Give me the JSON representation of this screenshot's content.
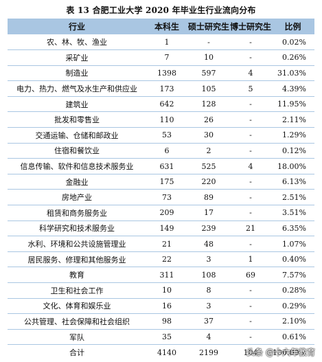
{
  "caption": "表 13    合肥工业大学 2020 年毕业生行业流向分布",
  "headers": {
    "industry": "行业",
    "bachelor": "本科生",
    "master": "硕士研究生",
    "phd": "博士研究生",
    "ratio": "比例"
  },
  "rows": [
    {
      "industry": "农、林、牧、渔业",
      "bachelor": "1",
      "master": "-",
      "phd": "-",
      "ratio": "0.02%"
    },
    {
      "industry": "采矿业",
      "bachelor": "7",
      "master": "10",
      "phd": "-",
      "ratio": "0.26%"
    },
    {
      "industry": "制造业",
      "bachelor": "1398",
      "master": "597",
      "phd": "4",
      "ratio": "31.03%"
    },
    {
      "industry": "电力、热力、燃气及水生产和供应业",
      "bachelor": "173",
      "master": "105",
      "phd": "5",
      "ratio": "4.39%"
    },
    {
      "industry": "建筑业",
      "bachelor": "642",
      "master": "128",
      "phd": "-",
      "ratio": "11.95%"
    },
    {
      "industry": "批发和零售业",
      "bachelor": "110",
      "master": "26",
      "phd": "-",
      "ratio": "2.11%"
    },
    {
      "industry": "交通运输、仓储和邮政业",
      "bachelor": "53",
      "master": "30",
      "phd": "-",
      "ratio": "1.29%"
    },
    {
      "industry": "住宿和餐饮业",
      "bachelor": "6",
      "master": "2",
      "phd": "-",
      "ratio": "0.12%"
    },
    {
      "industry": "信息传输、软件和信息技术服务业",
      "bachelor": "631",
      "master": "525",
      "phd": "4",
      "ratio": "18.00%"
    },
    {
      "industry": "金融业",
      "bachelor": "175",
      "master": "220",
      "phd": "-",
      "ratio": "6.13%"
    },
    {
      "industry": "房地产业",
      "bachelor": "73",
      "master": "89",
      "phd": "-",
      "ratio": "2.51%"
    },
    {
      "industry": "租赁和商务服务业",
      "bachelor": "209",
      "master": "17",
      "phd": "-",
      "ratio": "3.51%"
    },
    {
      "industry": "科学研究和技术服务业",
      "bachelor": "149",
      "master": "239",
      "phd": "21",
      "ratio": "6.35%"
    },
    {
      "industry": "水利、环境和公共设施管理业",
      "bachelor": "21",
      "master": "48",
      "phd": "-",
      "ratio": "1.07%"
    },
    {
      "industry": "居民服务、修理和其他服务业",
      "bachelor": "22",
      "master": "3",
      "phd": "1",
      "ratio": "0.40%"
    },
    {
      "industry": "教育",
      "bachelor": "311",
      "master": "108",
      "phd": "69",
      "ratio": "7.57%"
    },
    {
      "industry": "卫生和社会工作",
      "bachelor": "10",
      "master": "8",
      "phd": "-",
      "ratio": "0.28%"
    },
    {
      "industry": "文化、体育和娱乐业",
      "bachelor": "16",
      "master": "3",
      "phd": "-",
      "ratio": "0.29%"
    },
    {
      "industry": "公共管理、社会保障和社会组织",
      "bachelor": "98",
      "master": "37",
      "phd": "-",
      "ratio": "2.10%"
    },
    {
      "industry": "军队",
      "bachelor": "35",
      "master": "4",
      "phd": "-",
      "ratio": "0.61%"
    },
    {
      "industry": "合计",
      "bachelor": "4140",
      "master": "2199",
      "phd": "104",
      "ratio": "100.00%"
    }
  ],
  "watermark": "头条 @十六年教育",
  "colors": {
    "header_bg": "#a9c6e2",
    "row_rule": "#a9c6e2"
  }
}
